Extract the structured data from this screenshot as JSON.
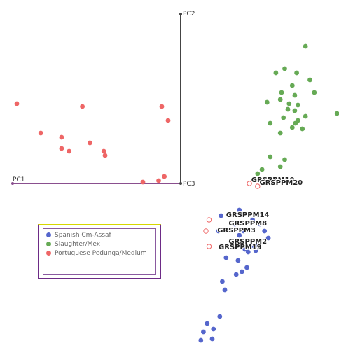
{
  "chart_data": {
    "type": "scatter",
    "title": "",
    "xlabel": "PC1",
    "ylabel": "PC2",
    "zlabel": "PC3",
    "colors": {
      "spanish": "#5566cc",
      "slaughter": "#66aa55",
      "portuguese": "#ee6666",
      "axis_x": "#8a4f8f",
      "axis_y": "#444444"
    },
    "legend": [
      {
        "label": "Spanish Cm-Assaf",
        "color": "#5566cc"
      },
      {
        "label": "Slaughter/Mex",
        "color": "#66aa55"
      },
      {
        "label": "Portuguese Pedunga/Medium",
        "color": "#ee6666"
      }
    ],
    "labels": [
      {
        "text": "GRSPPM10",
        "x": 11.2,
        "y": 0.1
      },
      {
        "text": "GRSPPM20",
        "x": 12.5,
        "y": -0.1
      },
      {
        "text": "GRSPPM14",
        "x": 7.2,
        "y": -2.4
      },
      {
        "text": "GRSPPM8",
        "x": 7.6,
        "y": -3.0
      },
      {
        "text": "GRSPPM3",
        "x": 5.8,
        "y": -3.5
      },
      {
        "text": "GRSPPM2",
        "x": 7.6,
        "y": -4.3
      },
      {
        "text": "GRSPPM19",
        "x": 6.0,
        "y": -4.7
      }
    ],
    "series": [
      {
        "name": "Portuguese Pedunga/Medium",
        "points": [
          [
            -26.0,
            5.7
          ],
          [
            -15.6,
            5.5
          ],
          [
            -3.0,
            5.5
          ],
          [
            -2.0,
            4.5
          ],
          [
            -22.2,
            3.6
          ],
          [
            -18.9,
            3.3
          ],
          [
            -18.9,
            2.5
          ],
          [
            -17.7,
            2.3
          ],
          [
            -14.4,
            2.9
          ],
          [
            -12.2,
            2.3
          ],
          [
            -12.0,
            2.0
          ],
          [
            -6.0,
            0.1
          ],
          [
            -3.5,
            0.2
          ],
          [
            -2.6,
            0.5
          ]
        ],
        "open_points": [
          [
            10.9,
            0.0
          ],
          [
            12.2,
            -0.2
          ],
          [
            4.5,
            -2.6
          ],
          [
            4.0,
            -3.4
          ],
          [
            4.5,
            -4.5
          ]
        ]
      },
      {
        "name": "Slaughter/Mex",
        "points": [
          [
            19.8,
            9.8
          ],
          [
            16.5,
            8.2
          ],
          [
            18.4,
            7.9
          ],
          [
            15.1,
            7.9
          ],
          [
            20.5,
            7.4
          ],
          [
            17.7,
            7.0
          ],
          [
            21.2,
            6.5
          ],
          [
            16.0,
            6.5
          ],
          [
            18.1,
            6.3
          ],
          [
            15.8,
            6.0
          ],
          [
            13.7,
            5.8
          ],
          [
            17.2,
            5.7
          ],
          [
            18.6,
            5.6
          ],
          [
            17.0,
            5.3
          ],
          [
            18.1,
            5.2
          ],
          [
            16.3,
            4.7
          ],
          [
            19.8,
            4.8
          ],
          [
            18.6,
            4.5
          ],
          [
            14.2,
            4.3
          ],
          [
            18.2,
            4.3
          ],
          [
            17.7,
            4.0
          ],
          [
            19.3,
            3.9
          ],
          [
            15.8,
            3.6
          ],
          [
            24.8,
            5.0
          ],
          [
            14.2,
            1.9
          ],
          [
            16.5,
            1.7
          ],
          [
            15.8,
            1.2
          ],
          [
            12.9,
            1.0
          ],
          [
            12.2,
            0.7
          ]
        ]
      },
      {
        "name": "Spanish Cm-Assaf",
        "points": [
          [
            9.3,
            -1.9
          ],
          [
            6.4,
            -2.3
          ],
          [
            11.4,
            -2.6
          ],
          [
            8.6,
            -2.9
          ],
          [
            12.6,
            -2.9
          ],
          [
            13.3,
            -3.4
          ],
          [
            10.0,
            -3.4
          ],
          [
            6.0,
            -3.4
          ],
          [
            9.3,
            -3.7
          ],
          [
            13.9,
            -3.9
          ],
          [
            11.4,
            -4.5
          ],
          [
            10.2,
            -4.7
          ],
          [
            10.7,
            -4.9
          ],
          [
            11.9,
            -4.8
          ],
          [
            12.1,
            -4.4
          ],
          [
            11.2,
            -4.5
          ],
          [
            7.2,
            -5.3
          ],
          [
            9.1,
            -5.5
          ],
          [
            10.5,
            -6.0
          ],
          [
            9.7,
            -6.3
          ],
          [
            8.8,
            -6.5
          ],
          [
            6.6,
            -7.0
          ],
          [
            7.0,
            -7.6
          ],
          [
            6.2,
            -9.5
          ],
          [
            4.2,
            -10.0
          ],
          [
            5.2,
            -10.4
          ],
          [
            3.6,
            -10.6
          ],
          [
            5.0,
            -11.1
          ],
          [
            3.2,
            -11.2
          ]
        ]
      }
    ]
  }
}
